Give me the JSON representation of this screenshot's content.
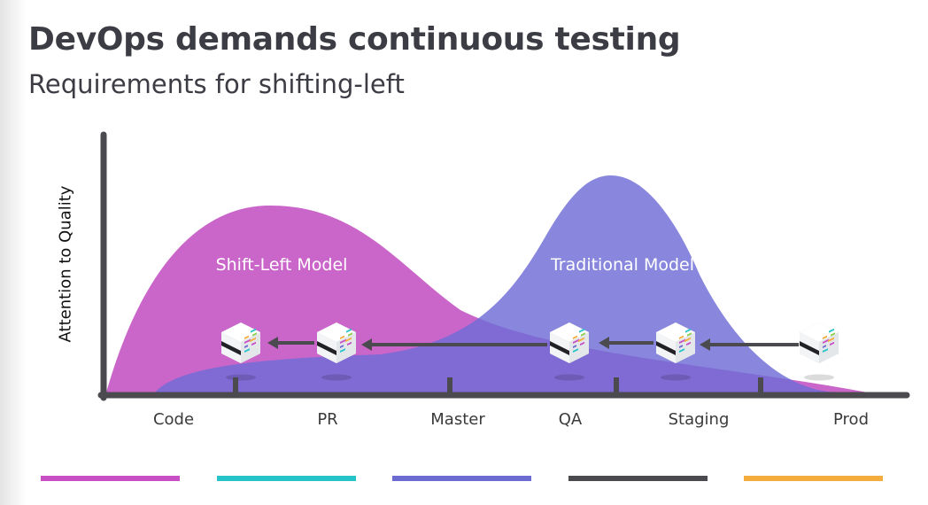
{
  "title": "DevOps demands continuous testing",
  "subtitle": "Requirements for shifting-left",
  "y_axis_label": "Attention to Quality",
  "models": {
    "shift_left": {
      "label": "Shift-Left Model",
      "color": "#c658c4"
    },
    "traditional": {
      "label": "Traditional Model",
      "color": "#6e6cd6"
    }
  },
  "stages": [
    "Code",
    "PR",
    "Master",
    "QA",
    "Staging",
    "Prod"
  ],
  "stage_checkpoints": [
    "PR",
    "Master",
    "QA",
    "Staging",
    "Prod"
  ],
  "legend_bar_colors": [
    "#c84fc4",
    "#26c4c9",
    "#6b6bd1",
    "#4a4a4f",
    "#f4ad3c"
  ],
  "icons": [
    "test-cube-icon",
    "arrow-left-icon"
  ]
}
